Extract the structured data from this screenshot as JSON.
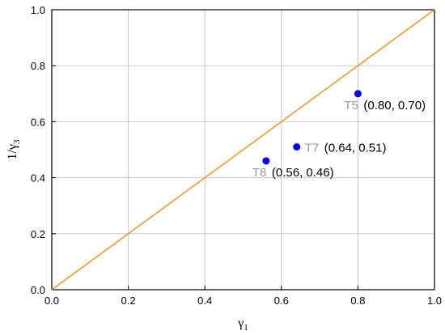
{
  "chart_data": {
    "type": "scatter",
    "xlabel": {
      "base": "γ",
      "sub": "1"
    },
    "ylabel": {
      "base": "1/γ",
      "sub": "3"
    },
    "xlim": [
      0.0,
      1.0
    ],
    "ylim": [
      0.0,
      1.0
    ],
    "grid": true,
    "xticks": [
      "0.0",
      "0.2",
      "0.4",
      "0.6",
      "0.8",
      "1.0"
    ],
    "yticks": [
      "0.0",
      "0.2",
      "0.4",
      "0.6",
      "0.8",
      "1.0"
    ],
    "reference_line": {
      "x": [
        0.0,
        1.0
      ],
      "y": [
        0.0,
        1.0
      ],
      "color": "#f0961e"
    },
    "points": [
      {
        "name": "T5",
        "x": 0.8,
        "y": 0.7,
        "coord_label": "(0.80, 0.70)"
      },
      {
        "name": "T7",
        "x": 0.64,
        "y": 0.51,
        "coord_label": "(0.64, 0.51)"
      },
      {
        "name": "T8",
        "x": 0.56,
        "y": 0.46,
        "coord_label": "(0.56, 0.46)"
      }
    ],
    "point_color": "#0000ff"
  }
}
